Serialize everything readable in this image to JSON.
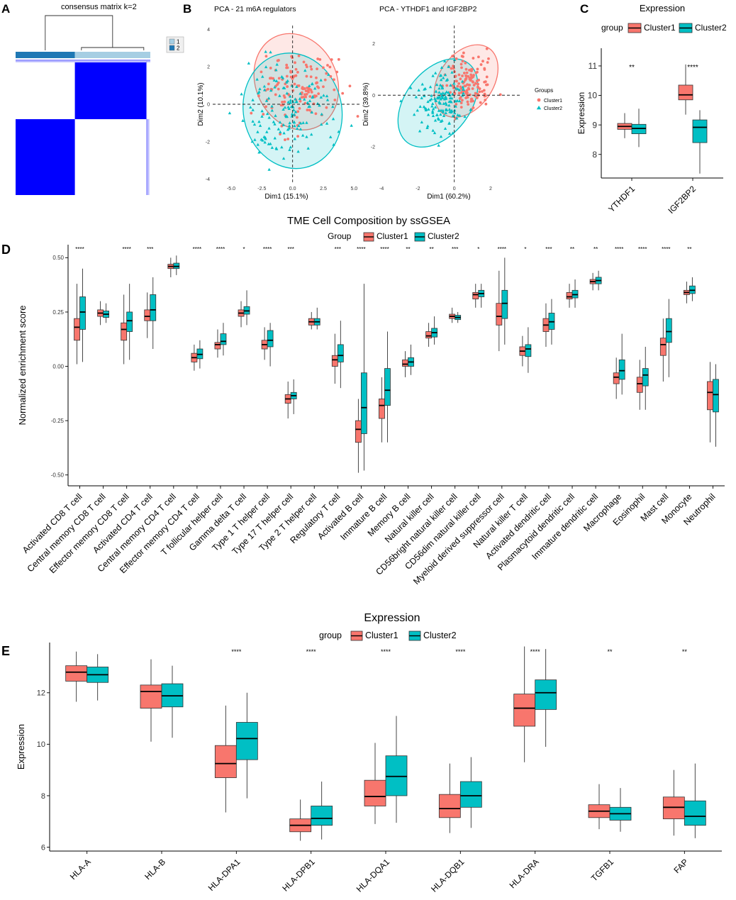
{
  "figure": {
    "colors": {
      "cluster1": "#F8766D",
      "cluster2": "#00BFC4",
      "heat_dark": "#0000FF",
      "heat_light": "#FFFFFF",
      "anno1": "#A6CEE3",
      "anno2": "#1F78B4"
    },
    "panels": {
      "A": {
        "letter": "A",
        "title": "consensus matrix k=2",
        "legend": [
          "1",
          "2"
        ]
      },
      "B": {
        "letter": "B",
        "groups_title": "Groups",
        "groups": [
          "Cluster1",
          "Cluster2"
        ]
      },
      "C": {
        "letter": "C"
      },
      "D": {
        "letter": "D"
      },
      "E": {
        "letter": "E"
      }
    }
  },
  "chart_data": [
    {
      "panel": "A",
      "type": "heatmap",
      "title": "consensus matrix k=2",
      "legend": [
        "1",
        "2"
      ],
      "blocks": [
        {
          "cluster": "1",
          "share": 0.44
        },
        {
          "cluster": "2",
          "share": 0.56
        }
      ]
    },
    {
      "panel": "B1",
      "type": "scatter",
      "title": "PCA - 21 m6A regulators",
      "xlabel": "Dim1 (15.1%)",
      "ylabel": "Dim2 (10.1%)",
      "xlim": [
        -6.5,
        5.5
      ],
      "ylim": [
        -4.2,
        4.2
      ],
      "xticks": [
        "-5.0",
        "-2.5",
        "0.0",
        "2.5",
        "5.0"
      ],
      "yticks": [
        "-4",
        "-2",
        "0",
        "2",
        "4"
      ],
      "ellipses": [
        {
          "name": "Cluster1",
          "cx": 0.3,
          "cy": 1.2,
          "rx": 3.3,
          "ry": 2.65,
          "angle": -25
        },
        {
          "name": "Cluster2",
          "cx": 0.0,
          "cy": -0.35,
          "rx": 4.0,
          "ry": 3.1,
          "angle": -12
        }
      ],
      "clouds": [
        {
          "name": "Cluster1",
          "cx": 0.5,
          "cy": 0.8,
          "sx": 1.55,
          "sy": 0.95,
          "n": 140,
          "seed": 7
        },
        {
          "name": "Cluster2",
          "cx": -0.4,
          "cy": -0.5,
          "sx": 1.9,
          "sy": 1.25,
          "n": 150,
          "seed": 19
        }
      ]
    },
    {
      "panel": "B2",
      "type": "scatter",
      "title": "PCA - YTHDF1 and IGF2BP2",
      "xlabel": "Dim1 (60.2%)",
      "ylabel": "Dim2 (39.8%)",
      "xlim": [
        -4.2,
        3.6
      ],
      "ylim": [
        -3.4,
        2.7
      ],
      "xticks": [
        "-4",
        "-2",
        "0",
        "2"
      ],
      "yticks": [
        "-2",
        "0",
        "2"
      ],
      "ellipses": [
        {
          "name": "Cluster1",
          "cx": 0.65,
          "cy": 0.55,
          "rx": 2.2,
          "ry": 1.05,
          "angle": -55
        },
        {
          "name": "Cluster2",
          "cx": -0.9,
          "cy": -0.3,
          "rx": 2.75,
          "ry": 1.25,
          "angle": -52
        }
      ],
      "clouds": [
        {
          "name": "Cluster1",
          "cx": 0.75,
          "cy": 0.45,
          "sx": 0.65,
          "sy": 0.55,
          "n": 140,
          "seed": 31
        },
        {
          "name": "Cluster2",
          "cx": -0.7,
          "cy": -0.2,
          "sx": 0.75,
          "sy": 0.65,
          "n": 150,
          "seed": 43
        }
      ],
      "legend_title": "Groups",
      "legend": [
        "Cluster1",
        "Cluster2"
      ]
    },
    {
      "panel": "C",
      "type": "box",
      "title": "Expression",
      "ylabel": "Expression",
      "legend_title": "group",
      "legend": [
        "Cluster1",
        "Cluster2"
      ],
      "ylim": [
        7.2,
        11.6
      ],
      "yticks": [
        8,
        9,
        10,
        11
      ],
      "categories": [
        "YTHDF1",
        "IGF2BP2"
      ],
      "significance": [
        "**",
        "****"
      ],
      "series": [
        {
          "name": "Cluster1",
          "boxes": [
            [
              8.55,
              8.85,
              8.95,
              9.05,
              9.4
            ],
            [
              9.35,
              9.85,
              10.02,
              10.35,
              11.05
            ]
          ]
        },
        {
          "name": "Cluster2",
          "boxes": [
            [
              8.25,
              8.7,
              8.88,
              9.02,
              9.55
            ],
            [
              7.35,
              8.4,
              8.92,
              9.17,
              9.5
            ]
          ]
        }
      ]
    },
    {
      "panel": "D",
      "type": "box",
      "title": "TME Cell Composition by ssGSEA",
      "ylabel": "Normalized enrichment score",
      "legend_title": "Group",
      "legend": [
        "Cluster1",
        "Cluster2"
      ],
      "ylim": [
        -0.55,
        0.56
      ],
      "yticks": [
        "-0.50",
        "-0.25",
        "0.00",
        "0.25",
        "0.50"
      ],
      "ytick_values": [
        -0.5,
        -0.25,
        0,
        0.25,
        0.5
      ],
      "categories": [
        "Activated CD8 T cell",
        "Central memory CD8 T cell",
        "Effector memory CD8 T cell",
        "Activated CD4 T cell",
        "Central memory CD4 T cell",
        "Effector memory CD4 T cell",
        "T follicular helper cell",
        "Gamma delta T cell",
        "Type 1 T helper cell",
        "Type 17 T helper cell",
        "Type 2 T helper cell",
        "Regulatory T cell",
        "Activated B cell",
        "Immature B cell",
        "Memory B cell",
        "Natural killer cell",
        "CD56bright natural killer cell",
        "CD56dim natural killer cell",
        "Myeloid derived suppressor cell",
        "Natural killer T cell",
        "Activated dendritic cell",
        "Plasmacytoid dendritic cell",
        "Immature dendritic cell",
        "Macrophage",
        "Eosinophil",
        "Mast cell",
        "Monocyte",
        "Neutrophil"
      ],
      "significance": [
        "****",
        "",
        "****",
        "***",
        "",
        "****",
        "****",
        "*",
        "****",
        "***",
        "",
        "***",
        "****",
        "****",
        "**",
        "**",
        "***",
        "*",
        "****",
        "*",
        "***",
        "**",
        "**",
        "****",
        "****",
        "****",
        "**",
        ""
      ],
      "series": [
        {
          "name": "Cluster1",
          "boxes": [
            [
              0.01,
              0.12,
              0.18,
              0.22,
              0.38
            ],
            [
              0.19,
              0.23,
              0.245,
              0.26,
              0.3
            ],
            [
              0.01,
              0.12,
              0.17,
              0.2,
              0.33
            ],
            [
              0.13,
              0.21,
              0.23,
              0.26,
              0.34
            ],
            [
              0.41,
              0.45,
              0.46,
              0.47,
              0.5
            ],
            [
              -0.02,
              0.02,
              0.04,
              0.06,
              0.1
            ],
            [
              0.04,
              0.08,
              0.1,
              0.11,
              0.17
            ],
            [
              0.18,
              0.23,
              0.245,
              0.26,
              0.3
            ],
            [
              0.03,
              0.08,
              0.1,
              0.12,
              0.18
            ],
            [
              -0.24,
              -0.17,
              -0.15,
              -0.13,
              -0.07
            ],
            [
              0.17,
              0.19,
              0.205,
              0.22,
              0.25
            ],
            [
              -0.08,
              0.0,
              0.03,
              0.05,
              0.15
            ],
            [
              -0.49,
              -0.35,
              -0.29,
              -0.25,
              -0.15
            ],
            [
              -0.35,
              -0.24,
              -0.18,
              -0.15,
              -0.05
            ],
            [
              -0.05,
              0.0,
              0.01,
              0.03,
              0.07
            ],
            [
              0.09,
              0.13,
              0.14,
              0.16,
              0.2
            ],
            [
              0.2,
              0.22,
              0.23,
              0.24,
              0.27
            ],
            [
              0.27,
              0.31,
              0.33,
              0.34,
              0.38
            ],
            [
              0.07,
              0.19,
              0.23,
              0.29,
              0.44
            ],
            [
              0.0,
              0.05,
              0.07,
              0.09,
              0.14
            ],
            [
              0.09,
              0.16,
              0.19,
              0.22,
              0.29
            ],
            [
              0.27,
              0.31,
              0.32,
              0.34,
              0.38
            ],
            [
              0.35,
              0.38,
              0.39,
              0.4,
              0.43
            ],
            [
              -0.15,
              -0.08,
              -0.05,
              -0.03,
              0.04
            ],
            [
              -0.2,
              -0.12,
              -0.08,
              -0.05,
              0.03
            ],
            [
              -0.07,
              0.05,
              0.1,
              0.13,
              0.22
            ],
            [
              0.29,
              0.33,
              0.34,
              0.35,
              0.39
            ],
            [
              -0.35,
              -0.2,
              -0.12,
              -0.07,
              0.02
            ]
          ]
        },
        {
          "name": "Cluster2",
          "boxes": [
            [
              0.02,
              0.17,
              0.25,
              0.32,
              0.45
            ],
            [
              0.2,
              0.225,
              0.24,
              0.255,
              0.29
            ],
            [
              0.03,
              0.16,
              0.21,
              0.25,
              0.38
            ],
            [
              0.08,
              0.21,
              0.26,
              0.33,
              0.41
            ],
            [
              0.42,
              0.45,
              0.46,
              0.475,
              0.51
            ],
            [
              -0.01,
              0.035,
              0.055,
              0.08,
              0.12
            ],
            [
              0.05,
              0.1,
              0.115,
              0.15,
              0.2
            ],
            [
              0.19,
              0.24,
              0.255,
              0.275,
              0.35
            ],
            [
              0.0,
              0.09,
              0.12,
              0.165,
              0.2
            ],
            [
              -0.22,
              -0.15,
              -0.135,
              -0.12,
              -0.06
            ],
            [
              0.17,
              0.19,
              0.205,
              0.22,
              0.27
            ],
            [
              -0.1,
              0.02,
              0.05,
              0.1,
              0.21
            ],
            [
              -0.48,
              -0.31,
              -0.19,
              -0.03,
              0.38
            ],
            [
              -0.35,
              -0.18,
              -0.11,
              -0.01,
              0.16
            ],
            [
              -0.04,
              0.0,
              0.02,
              0.04,
              0.1
            ],
            [
              0.1,
              0.135,
              0.155,
              0.175,
              0.23
            ],
            [
              0.2,
              0.215,
              0.225,
              0.235,
              0.25
            ],
            [
              0.27,
              0.32,
              0.335,
              0.35,
              0.38
            ],
            [
              0.1,
              0.22,
              0.29,
              0.35,
              0.5
            ],
            [
              -0.03,
              0.045,
              0.08,
              0.1,
              0.18
            ],
            [
              0.1,
              0.17,
              0.205,
              0.245,
              0.31
            ],
            [
              0.27,
              0.315,
              0.33,
              0.35,
              0.4
            ],
            [
              0.35,
              0.38,
              0.395,
              0.41,
              0.44
            ],
            [
              -0.13,
              -0.06,
              -0.02,
              0.03,
              0.15
            ],
            [
              -0.2,
              -0.09,
              -0.04,
              -0.01,
              0.09
            ],
            [
              -0.05,
              0.11,
              0.16,
              0.22,
              0.31
            ],
            [
              0.3,
              0.335,
              0.35,
              0.37,
              0.41
            ],
            [
              -0.37,
              -0.21,
              -0.13,
              -0.06,
              0.01
            ]
          ]
        }
      ]
    },
    {
      "panel": "E",
      "type": "box",
      "title": "Expression",
      "ylabel": "Expression",
      "legend_title": "group",
      "legend": [
        "Cluster1",
        "Cluster2"
      ],
      "ylim": [
        5.85,
        13.95
      ],
      "yticks": [
        6,
        8,
        10,
        12
      ],
      "categories": [
        "HLA-A",
        "HLA-B",
        "HLA-DPA1",
        "HLA-DPB1",
        "HLA-DQA1",
        "HLA-DQB1",
        "HLA-DRA",
        "TGFB1",
        "FAP"
      ],
      "significance": [
        "",
        "",
        "****",
        "****",
        "****",
        "****",
        "****",
        "**",
        "**"
      ],
      "series": [
        {
          "name": "Cluster1",
          "boxes": [
            [
              11.65,
              12.45,
              12.8,
              13.05,
              13.6
            ],
            [
              10.1,
              11.4,
              12.05,
              12.3,
              13.3
            ],
            [
              7.35,
              8.7,
              9.25,
              9.95,
              11.5
            ],
            [
              6.25,
              6.6,
              6.85,
              7.1,
              7.85
            ],
            [
              6.9,
              7.6,
              7.97,
              8.6,
              10.05
            ],
            [
              6.55,
              7.15,
              7.5,
              8.05,
              9.25
            ],
            [
              9.3,
              10.7,
              11.4,
              11.95,
              13.8
            ],
            [
              6.7,
              7.15,
              7.4,
              7.65,
              8.45
            ],
            [
              6.45,
              7.1,
              7.55,
              7.95,
              9.0
            ]
          ]
        },
        {
          "name": "Cluster2",
          "boxes": [
            [
              11.7,
              12.4,
              12.7,
              13.0,
              13.5
            ],
            [
              10.25,
              11.45,
              11.88,
              12.35,
              13.05
            ],
            [
              7.9,
              9.4,
              10.22,
              10.85,
              12.0
            ],
            [
              6.3,
              6.85,
              7.12,
              7.6,
              8.55
            ],
            [
              6.95,
              8.0,
              8.75,
              9.55,
              11.1
            ],
            [
              6.75,
              7.55,
              8.0,
              8.55,
              9.5
            ],
            [
              9.9,
              11.35,
              12.0,
              12.5,
              13.7
            ],
            [
              6.6,
              7.05,
              7.3,
              7.55,
              8.3
            ],
            [
              6.35,
              6.85,
              7.2,
              7.8,
              9.25
            ]
          ]
        }
      ]
    }
  ]
}
